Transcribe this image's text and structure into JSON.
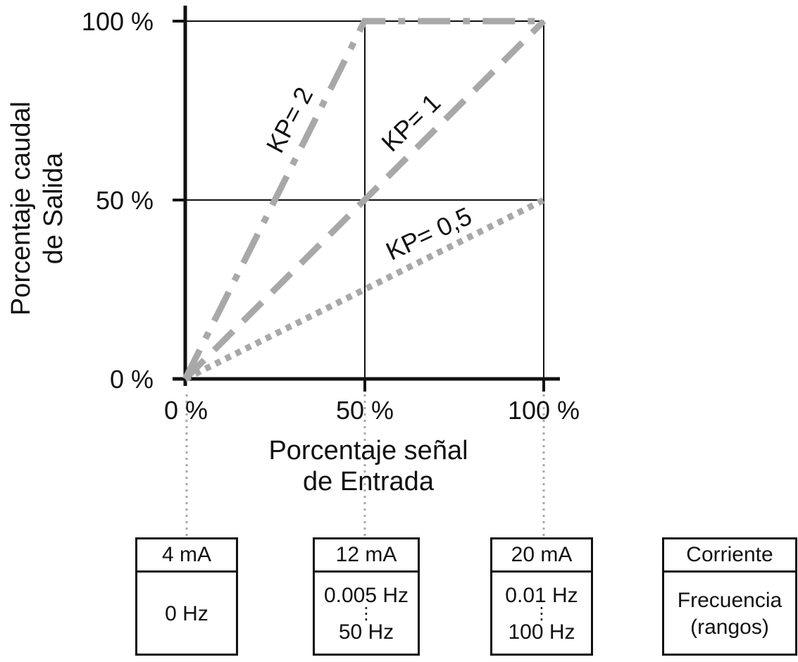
{
  "chart_data": {
    "type": "line",
    "xlabel_line1": "Porcentaje señal",
    "xlabel_line2": "de Entrada",
    "ylabel_line1": "Porcentaje caudal",
    "ylabel_line2": "de Salida",
    "x_ticks": [
      "0 %",
      "50 %",
      "100 %"
    ],
    "y_ticks": [
      "0 %",
      "50 %",
      "100 %"
    ],
    "xlim": [
      0,
      100
    ],
    "ylim": [
      0,
      100
    ],
    "grid": true,
    "series": [
      {
        "name": "KP= 2",
        "x": [
          0,
          50,
          100
        ],
        "y": [
          0,
          100,
          100
        ],
        "style": "dash-dot",
        "color": "#a8a8a8"
      },
      {
        "name": "KP= 1",
        "x": [
          0,
          100
        ],
        "y": [
          0,
          100
        ],
        "style": "dashed",
        "color": "#a8a8a8"
      },
      {
        "name": "KP= 0,5",
        "x": [
          0,
          100
        ],
        "y": [
          0,
          50
        ],
        "style": "dotted",
        "color": "#a8a8a8"
      }
    ]
  },
  "boxes": [
    {
      "current": "4 mA",
      "freq_lines": [
        "0 Hz"
      ]
    },
    {
      "current": "12 mA",
      "freq_lines": [
        "0.005 Hz",
        "⋮",
        "50 Hz"
      ]
    },
    {
      "current": "20 mA",
      "freq_lines": [
        "0.01 Hz",
        "⋮",
        "100 Hz"
      ]
    },
    {
      "current": "Corriente",
      "freq_lines": [
        "Frecuencia",
        "(rangos)"
      ]
    }
  ],
  "colors": {
    "axis": "#111111",
    "series": "#a8a8a8",
    "guide": "#a8a8a8"
  }
}
